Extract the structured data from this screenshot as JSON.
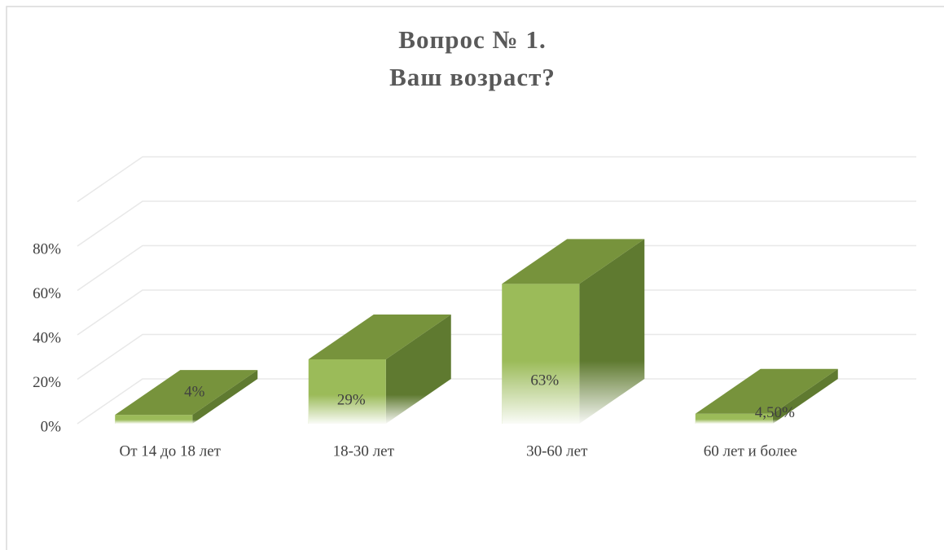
{
  "chart_data": {
    "type": "bar3d",
    "title": [
      "Вопрос № 1.",
      "Ваш возраст?"
    ],
    "categories": [
      "От 14 до 18 лет",
      "18-30 лет",
      "30-60 лет",
      "60 лет и более"
    ],
    "values": [
      4,
      29,
      63,
      4.5
    ],
    "value_labels": [
      "4%",
      "29%",
      "63%",
      "4,50%"
    ],
    "color": "#9bbb59",
    "ylim": [
      0,
      80
    ],
    "yticks": [
      {
        "value": 0,
        "label": "0%"
      },
      {
        "value": 20,
        "label": "20%"
      },
      {
        "value": 40,
        "label": "40%"
      },
      {
        "value": 60,
        "label": "60%"
      },
      {
        "value": 80,
        "label": "80%"
      }
    ],
    "grid": true
  }
}
